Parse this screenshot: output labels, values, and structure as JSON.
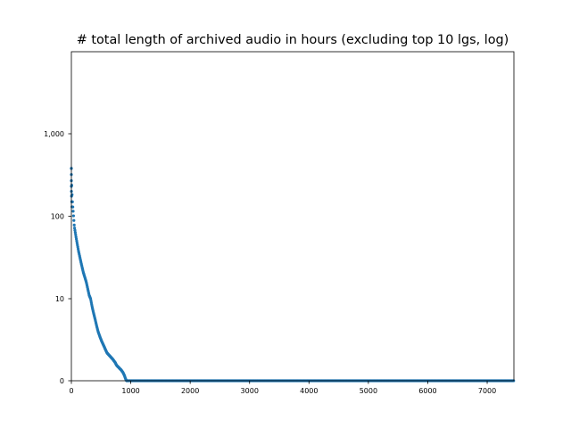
{
  "chart_data": {
    "type": "scatter",
    "title": "# total length of archived audio in hours (excluding top 10 lgs, log)",
    "xlabel": "",
    "ylabel": "",
    "xlim": [
      0,
      7450
    ],
    "ylim_display": [
      0,
      10000
    ],
    "y_scale": "symlog",
    "x_ticks": [
      0,
      1000,
      2000,
      3000,
      4000,
      5000,
      6000,
      7000
    ],
    "x_tick_labels": [
      "0",
      "1000",
      "2000",
      "3000",
      "4000",
      "5000",
      "6000",
      "7000"
    ],
    "y_ticks": [
      0,
      10,
      100,
      1000
    ],
    "y_tick_labels": [
      "0",
      "10",
      "100",
      "1,000"
    ],
    "grid": false,
    "legend": "none",
    "series": [
      {
        "color": "#1f77b4",
        "description_points_x": [
          0,
          2,
          5,
          10,
          20,
          30,
          50,
          80,
          120,
          160,
          200,
          250,
          300,
          350,
          400,
          450,
          500,
          550,
          600,
          650,
          700,
          740,
          760,
          800,
          840,
          870,
          890,
          900,
          910,
          920,
          930,
          1000,
          2000,
          3000,
          4000,
          5000,
          6000,
          7000,
          7450
        ],
        "description_points_y": [
          380,
          300,
          250,
          195,
          140,
          115,
          75,
          55,
          38,
          28,
          21,
          16,
          11,
          9,
          7.5,
          6,
          5,
          4.2,
          3.4,
          3,
          2.6,
          2.2,
          1.9,
          1.6,
          1.3,
          1.0,
          0.7,
          0.5,
          0.3,
          0.12,
          0,
          0,
          0,
          0,
          0,
          0,
          0,
          0,
          0
        ]
      }
    ]
  }
}
